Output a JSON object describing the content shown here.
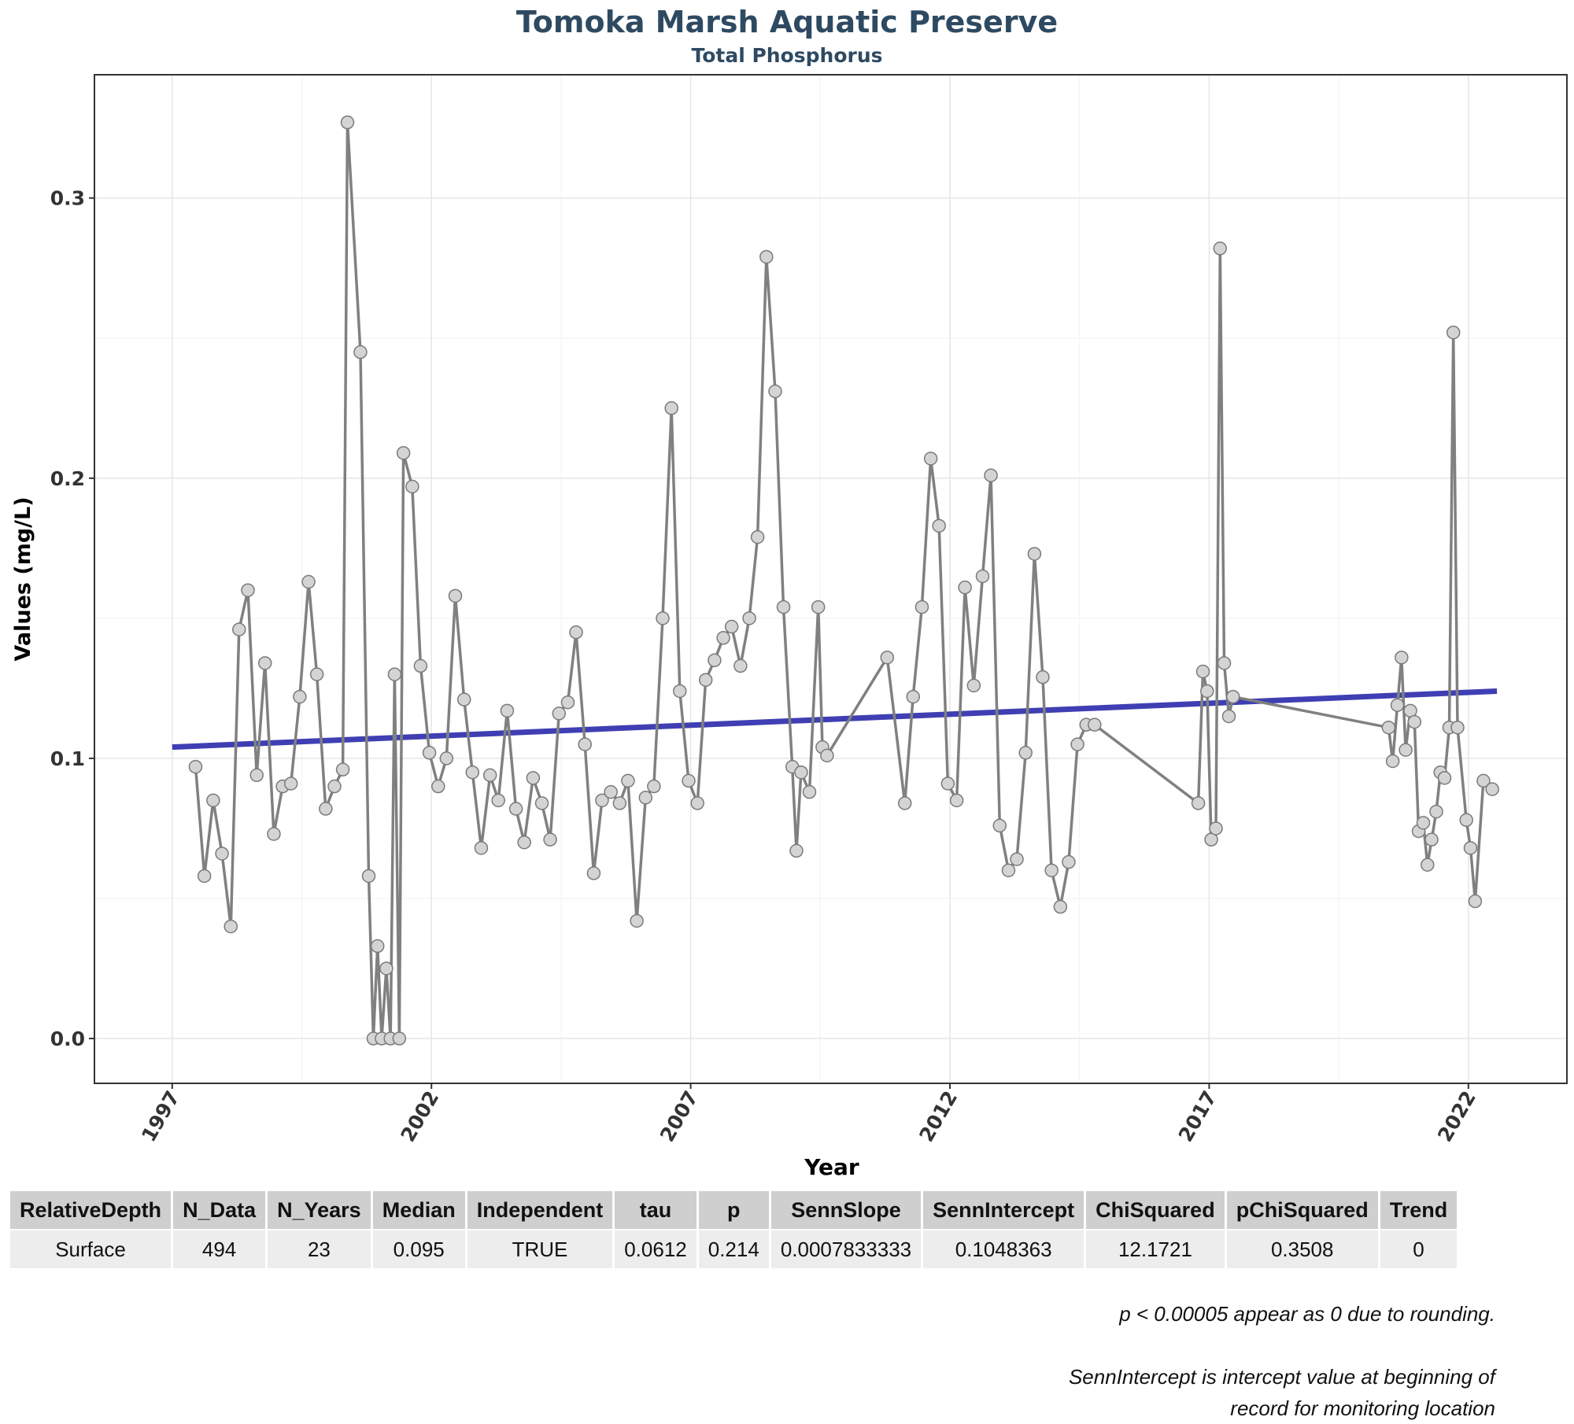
{
  "chart_data": {
    "type": "line",
    "title": "Tomoka Marsh Aquatic Preserve",
    "subtitle": "Total Phosphorus",
    "xlabel": "Year",
    "ylabel": "Values (mg/L)",
    "xlim": [
      1995.5,
      2023.9
    ],
    "ylim": [
      -0.016,
      0.344
    ],
    "x_ticks": [
      1997,
      2002,
      2007,
      2012,
      2017,
      2022
    ],
    "y_ticks": [
      0.0,
      0.1,
      0.2,
      0.3
    ],
    "y_tick_labels": [
      "0.0",
      "0.1",
      "0.2",
      "0.3"
    ],
    "grid": true,
    "series": [
      {
        "kind": "points-line",
        "color": "#808080",
        "points": [
          [
            1997.45,
            0.097
          ],
          [
            1997.62,
            0.058
          ],
          [
            1997.79,
            0.085
          ],
          [
            1997.96,
            0.066
          ],
          [
            1998.13,
            0.04
          ],
          [
            1998.29,
            0.146
          ],
          [
            1998.46,
            0.16
          ],
          [
            1998.63,
            0.094
          ],
          [
            1998.79,
            0.134
          ],
          [
            1998.96,
            0.073
          ],
          [
            1999.13,
            0.09
          ],
          [
            1999.29,
            0.091
          ],
          [
            1999.46,
            0.122
          ],
          [
            1999.63,
            0.163
          ],
          [
            1999.79,
            0.13
          ],
          [
            1999.96,
            0.082
          ],
          [
            2000.13,
            0.09
          ],
          [
            2000.29,
            0.096
          ],
          [
            2000.38,
            0.327
          ],
          [
            2000.63,
            0.245
          ],
          [
            2000.79,
            0.058
          ],
          [
            2000.88,
            0.0
          ],
          [
            2000.96,
            0.033
          ],
          [
            2001.04,
            0.0
          ],
          [
            2001.13,
            0.025
          ],
          [
            2001.21,
            0.0
          ],
          [
            2001.29,
            0.13
          ],
          [
            2001.38,
            0.0
          ],
          [
            2001.46,
            0.209
          ],
          [
            2001.63,
            0.197
          ],
          [
            2001.79,
            0.133
          ],
          [
            2001.96,
            0.102
          ],
          [
            2002.13,
            0.09
          ],
          [
            2002.29,
            0.1
          ],
          [
            2002.46,
            0.158
          ],
          [
            2002.63,
            0.121
          ],
          [
            2002.79,
            0.095
          ],
          [
            2002.96,
            0.068
          ],
          [
            2003.13,
            0.094
          ],
          [
            2003.29,
            0.085
          ],
          [
            2003.46,
            0.117
          ],
          [
            2003.63,
            0.082
          ],
          [
            2003.79,
            0.07
          ],
          [
            2003.96,
            0.093
          ],
          [
            2004.13,
            0.084
          ],
          [
            2004.29,
            0.071
          ],
          [
            2004.46,
            0.116
          ],
          [
            2004.63,
            0.12
          ],
          [
            2004.79,
            0.145
          ],
          [
            2004.96,
            0.105
          ],
          [
            2005.13,
            0.059
          ],
          [
            2005.29,
            0.085
          ],
          [
            2005.46,
            0.088
          ],
          [
            2005.63,
            0.084
          ],
          [
            2005.79,
            0.092
          ],
          [
            2005.96,
            0.042
          ],
          [
            2006.13,
            0.086
          ],
          [
            2006.29,
            0.09
          ],
          [
            2006.46,
            0.15
          ],
          [
            2006.63,
            0.225
          ],
          [
            2006.79,
            0.124
          ],
          [
            2006.96,
            0.092
          ],
          [
            2007.13,
            0.084
          ],
          [
            2007.29,
            0.128
          ],
          [
            2007.46,
            0.135
          ],
          [
            2007.63,
            0.143
          ],
          [
            2007.79,
            0.147
          ],
          [
            2007.96,
            0.133
          ],
          [
            2008.13,
            0.15
          ],
          [
            2008.29,
            0.179
          ],
          [
            2008.46,
            0.279
          ],
          [
            2008.63,
            0.231
          ],
          [
            2008.79,
            0.154
          ],
          [
            2008.96,
            0.097
          ],
          [
            2009.04,
            0.067
          ],
          [
            2009.13,
            0.095
          ],
          [
            2009.29,
            0.088
          ],
          [
            2009.46,
            0.154
          ],
          [
            2009.54,
            0.104
          ],
          [
            2009.63,
            0.101
          ],
          [
            2010.79,
            0.136
          ],
          [
            2011.13,
            0.084
          ],
          [
            2011.29,
            0.122
          ],
          [
            2011.46,
            0.154
          ],
          [
            2011.63,
            0.207
          ],
          [
            2011.79,
            0.183
          ],
          [
            2011.96,
            0.091
          ],
          [
            2012.13,
            0.085
          ],
          [
            2012.29,
            0.161
          ],
          [
            2012.46,
            0.126
          ],
          [
            2012.63,
            0.165
          ],
          [
            2012.79,
            0.201
          ],
          [
            2012.96,
            0.076
          ],
          [
            2013.13,
            0.06
          ],
          [
            2013.29,
            0.064
          ],
          [
            2013.46,
            0.102
          ],
          [
            2013.63,
            0.173
          ],
          [
            2013.79,
            0.129
          ],
          [
            2013.96,
            0.06
          ],
          [
            2014.13,
            0.047
          ],
          [
            2014.29,
            0.063
          ],
          [
            2014.46,
            0.105
          ],
          [
            2014.63,
            0.112
          ],
          [
            2014.79,
            0.112
          ],
          [
            2016.79,
            0.084
          ],
          [
            2016.88,
            0.131
          ],
          [
            2016.96,
            0.124
          ],
          [
            2017.04,
            0.071
          ],
          [
            2017.13,
            0.075
          ],
          [
            2017.21,
            0.282
          ],
          [
            2017.29,
            0.134
          ],
          [
            2017.38,
            0.115
          ],
          [
            2017.46,
            0.122
          ],
          [
            2020.46,
            0.111
          ],
          [
            2020.54,
            0.099
          ],
          [
            2020.63,
            0.119
          ],
          [
            2020.71,
            0.136
          ],
          [
            2020.79,
            0.103
          ],
          [
            2020.88,
            0.117
          ],
          [
            2020.96,
            0.113
          ],
          [
            2021.04,
            0.074
          ],
          [
            2021.13,
            0.077
          ],
          [
            2021.21,
            0.062
          ],
          [
            2021.29,
            0.071
          ],
          [
            2021.38,
            0.081
          ],
          [
            2021.46,
            0.095
          ],
          [
            2021.54,
            0.093
          ],
          [
            2021.63,
            0.111
          ],
          [
            2021.71,
            0.252
          ],
          [
            2021.79,
            0.111
          ],
          [
            2021.96,
            0.078
          ],
          [
            2022.04,
            0.068
          ],
          [
            2022.13,
            0.049
          ],
          [
            2022.29,
            0.092
          ],
          [
            2022.46,
            0.089
          ]
        ]
      },
      {
        "kind": "trend-line",
        "color": "#3f3fb3",
        "points": [
          [
            1997.0,
            0.104
          ],
          [
            2022.55,
            0.124
          ]
        ]
      }
    ]
  },
  "table": {
    "headers": [
      "RelativeDepth",
      "N_Data",
      "N_Years",
      "Median",
      "Independent",
      "tau",
      "p",
      "SennSlope",
      "SennIntercept",
      "ChiSquared",
      "pChiSquared",
      "Trend"
    ],
    "row": [
      "Surface",
      "494",
      "23",
      "0.095",
      "TRUE",
      "0.0612",
      "0.214",
      "0.0007833333",
      "0.1048363",
      "12.1721",
      "0.3508",
      "0"
    ]
  },
  "notes": {
    "note1": "p < 0.00005 appear as 0 due to rounding.",
    "note2_line1": "SennIntercept is intercept value at beginning of",
    "note2_line2": "record for monitoring location"
  }
}
